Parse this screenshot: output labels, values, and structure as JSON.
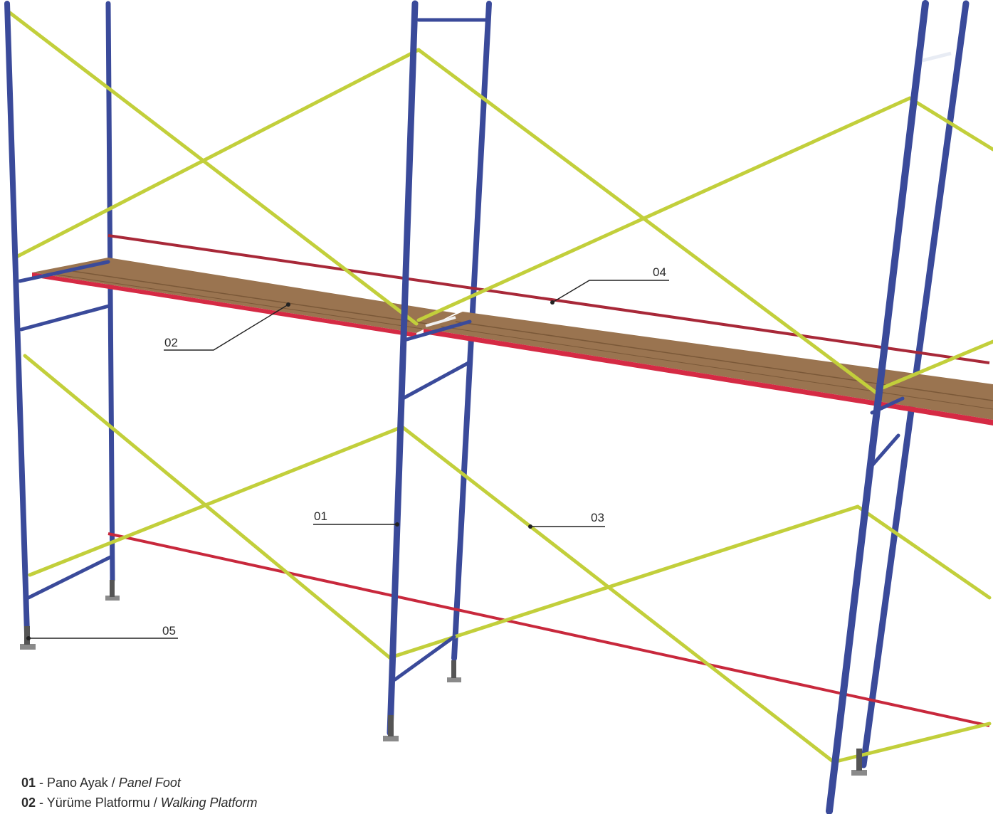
{
  "diagram": {
    "title": "",
    "colors": {
      "frame": "#3a4a9a",
      "cross_brace": "#c2cf3b",
      "guard_rail": "#c8283c",
      "platform_wood": "#9a7450",
      "platform_edge": "#d52a44",
      "foot": "#8a8a8a",
      "leader": "#222222"
    },
    "callouts": [
      {
        "code": "01",
        "label": "01"
      },
      {
        "code": "02",
        "label": "02"
      },
      {
        "code": "03",
        "label": "03"
      },
      {
        "code": "04",
        "label": "04"
      },
      {
        "code": "05",
        "label": "05"
      }
    ]
  },
  "legend": [
    {
      "code": "01",
      "sep": " - ",
      "tr": "Pano Ayak",
      "slash": " / ",
      "en": "Panel Foot"
    },
    {
      "code": "02",
      "sep": " - ",
      "tr": "Yürüme Platformu",
      "slash": " / ",
      "en": "Walking Platform"
    }
  ]
}
